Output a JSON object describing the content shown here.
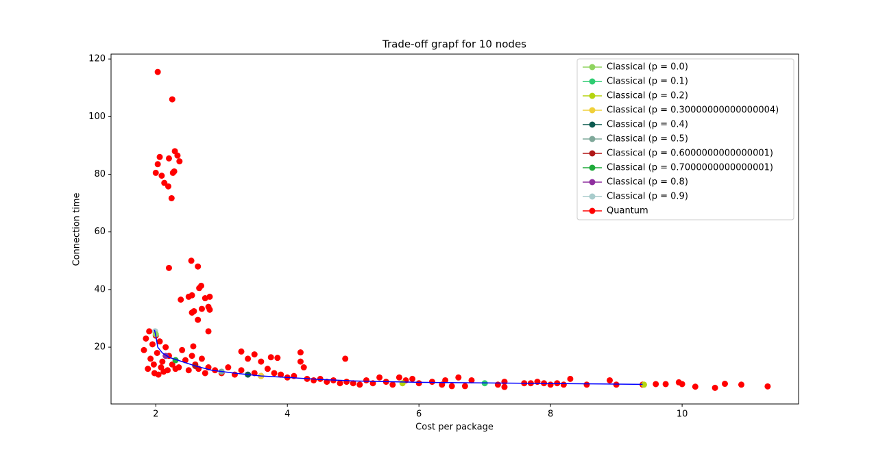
{
  "chart_data": {
    "type": "scatter",
    "title": "Trade-off grapf for 10 nodes",
    "x_label": "Cost per package",
    "y_label": "Connection time",
    "xlim": [
      1.32,
      11.77
    ],
    "ylim": [
      0.3,
      121.7
    ],
    "xticks": [
      2,
      4,
      6,
      8,
      10
    ],
    "yticks": [
      20,
      40,
      60,
      80,
      100,
      120
    ],
    "legend": "upper right",
    "series": [
      {
        "name": "Classical (p = 0.0)",
        "color": "#8fd45f",
        "x": [
          2.0
        ],
        "values": [
          24.5
        ]
      },
      {
        "name": "Classical (p = 0.1)",
        "color": "#2ecc71",
        "x": [
          7.0
        ],
        "values": [
          7.5
        ]
      },
      {
        "name": "Classical (p = 0.2)",
        "color": "#b5d40f",
        "x": [
          5.75,
          9.42
        ],
        "values": [
          7.5,
          7.0
        ]
      },
      {
        "name": "Classical (p = 0.30000000000000004)",
        "color": "#f0d03a",
        "x": [
          3.6
        ],
        "values": [
          10.0
        ]
      },
      {
        "name": "Classical (p = 0.4)",
        "color": "#0b5a4f",
        "x": [
          3.4
        ],
        "values": [
          10.5
        ]
      },
      {
        "name": "Classical (p = 0.5)",
        "color": "#7fa89a",
        "x": [
          3.0
        ],
        "values": [
          11.5
        ]
      },
      {
        "name": "Classical (p = 0.6000000000000001)",
        "color": "#b01717",
        "x": [
          2.6
        ],
        "values": [
          13.5
        ]
      },
      {
        "name": "Classical (p = 0.7000000000000001)",
        "color": "#1faa3a",
        "x": [
          2.3
        ],
        "values": [
          15.5
        ]
      },
      {
        "name": "Classical (p = 0.8)",
        "color": "#8e2e9e",
        "x": [
          2.15
        ],
        "values": [
          17.0
        ]
      },
      {
        "name": "Classical (p = 0.9)",
        "color": "#a8cccc",
        "x": [
          1.99
        ],
        "values": [
          25.5
        ]
      },
      {
        "name": "Quantum",
        "color": "#ff0000",
        "x": [
          1.82,
          1.85,
          1.88,
          1.9,
          1.92,
          1.95,
          1.97,
          1.98,
          2.0,
          2.02,
          2.04,
          2.06,
          2.08,
          2.1,
          2.12,
          2.15,
          2.18,
          2.2,
          2.25,
          2.3,
          2.35,
          2.4,
          2.45,
          2.5,
          2.55,
          2.6,
          2.65,
          2.7,
          2.75,
          2.8,
          2.03,
          2.25,
          2.0,
          2.03,
          2.06,
          2.09,
          2.13,
          2.19,
          2.2,
          2.24,
          2.26,
          2.28,
          2.29,
          2.33,
          2.36,
          2.2,
          2.54,
          2.64,
          2.38,
          2.5,
          2.55,
          2.55,
          2.58,
          2.64,
          2.66,
          2.69,
          2.7,
          2.75,
          2.8,
          2.82,
          2.82,
          2.8,
          2.57,
          2.9,
          3.0,
          3.1,
          3.2,
          3.3,
          3.3,
          3.4,
          3.5,
          3.5,
          3.6,
          3.6,
          3.7,
          3.75,
          3.8,
          3.85,
          3.9,
          4.0,
          4.1,
          4.2,
          4.2,
          4.25,
          4.3,
          4.4,
          4.5,
          4.6,
          4.7,
          4.8,
          4.88,
          4.9,
          5.0,
          5.1,
          5.2,
          5.3,
          5.4,
          5.5,
          5.6,
          5.7,
          5.8,
          5.9,
          6.0,
          6.2,
          6.35,
          6.4,
          6.5,
          6.6,
          6.7,
          6.8,
          7.2,
          7.3,
          7.3,
          7.6,
          7.7,
          7.8,
          7.9,
          8.0,
          8.1,
          8.2,
          8.3,
          8.55,
          8.9,
          9.0,
          9.4,
          9.6,
          9.75,
          9.95,
          10.0,
          10.2,
          10.5,
          10.65,
          10.9,
          11.3
        ],
        "values": [
          19,
          23,
          12.5,
          25.5,
          16,
          21,
          14,
          11,
          24,
          18,
          10.5,
          22,
          13,
          15,
          11.5,
          20,
          12,
          17,
          14,
          12.5,
          13,
          19,
          15.5,
          12,
          17,
          14,
          12.5,
          16,
          11,
          13,
          115.5,
          106,
          80.5,
          83.5,
          86,
          79.5,
          77,
          75.8,
          85.5,
          71.7,
          80.5,
          81,
          88,
          86.5,
          84.5,
          47.5,
          50,
          48,
          36.5,
          37.5,
          38,
          32,
          32.5,
          29.5,
          40.5,
          41.3,
          33.3,
          37,
          34,
          37.5,
          33,
          25.5,
          20.3,
          12,
          11,
          13,
          10.5,
          12,
          18.5,
          16,
          17.5,
          11,
          15,
          10,
          12.5,
          16.5,
          11,
          16.3,
          10.5,
          9.5,
          10,
          18.2,
          15,
          13,
          9,
          8.5,
          9,
          8,
          8.5,
          7.5,
          16,
          8,
          7.5,
          7,
          8.5,
          7.5,
          9.5,
          8,
          7,
          9.5,
          8.5,
          9,
          7.5,
          8,
          7,
          8.5,
          6.5,
          9.5,
          6.5,
          8.5,
          7,
          8,
          6.2,
          7.5,
          7.5,
          8,
          7.5,
          7,
          7.5,
          7,
          9,
          7,
          8.5,
          7,
          7,
          7.2,
          7.2,
          7.8,
          7.2,
          6.3,
          5.9,
          7.3,
          7,
          6.4
        ]
      }
    ],
    "curve": {
      "color": "#0000ff",
      "x": [
        1.98,
        2.0,
        2.03,
        2.1,
        2.2,
        2.4,
        2.6,
        2.85,
        3.2,
        3.6,
        4.0,
        4.5,
        5.0,
        6.0,
        7.0,
        8.0,
        9.0,
        9.4
      ],
      "values": [
        26,
        24,
        20,
        18,
        16.5,
        15,
        13.5,
        12,
        11,
        10,
        9.5,
        8.8,
        8.3,
        7.8,
        7.6,
        7.4,
        7.2,
        7.1
      ]
    }
  }
}
